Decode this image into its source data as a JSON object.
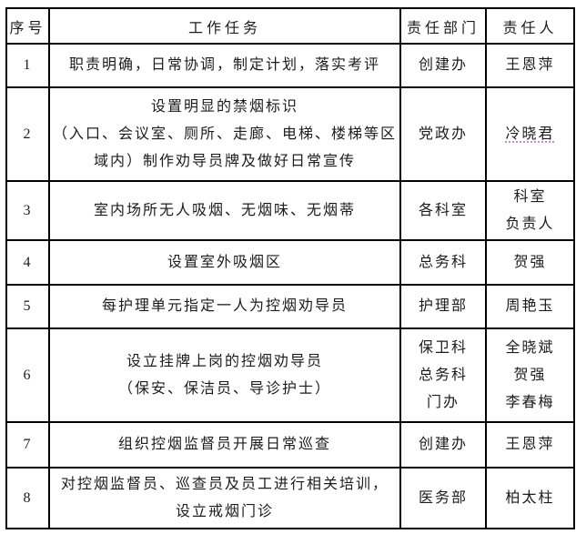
{
  "colors": {
    "border": "#000000",
    "text": "#1c1c1c",
    "spellcheck_underline": "#cc66cc"
  },
  "table": {
    "headers": [
      "序号",
      "工作任务",
      "责任部门",
      "责任人"
    ],
    "rows": [
      {
        "no": "1",
        "task": [
          "职责明确，日常协调，制定计划，落实考评"
        ],
        "dept": [
          "创建办"
        ],
        "person": [
          "王恩萍"
        ]
      },
      {
        "no": "2",
        "task": [
          "设置明显的禁烟标识",
          "（入口、会议室、厕所、走廊、电梯、楼梯等区",
          "域内）制作劝导员牌及做好日常宣传"
        ],
        "dept": [
          "党政办"
        ],
        "person": [
          "冷晓君"
        ],
        "person_underlined": true
      },
      {
        "no": "3",
        "task": [
          "室内场所无人吸烟、无烟味、无烟蒂"
        ],
        "dept": [
          "各科室"
        ],
        "person": [
          "科室",
          "负责人"
        ]
      },
      {
        "no": "4",
        "task": [
          "设置室外吸烟区"
        ],
        "dept": [
          "总务科"
        ],
        "person": [
          "贺强"
        ]
      },
      {
        "no": "5",
        "task": [
          "每护理单元指定一人为控烟劝导员"
        ],
        "dept": [
          "护理部"
        ],
        "person": [
          "周艳玉"
        ]
      },
      {
        "no": "6",
        "task": [
          "设立挂牌上岗的控烟劝导员",
          "（保安、保洁员、导诊护士）"
        ],
        "dept": [
          "保卫科",
          "总务科",
          "门办"
        ],
        "person": [
          "全晓斌",
          "贺强",
          "李春梅"
        ]
      },
      {
        "no": "7",
        "task": [
          "组织控烟监督员开展日常巡查"
        ],
        "dept": [
          "创建办"
        ],
        "person": [
          "王恩萍"
        ]
      },
      {
        "no": "8",
        "task": [
          "对控烟监督员、巡查员及员工进行相关培训，",
          "设立戒烟门诊"
        ],
        "dept": [
          "医务部"
        ],
        "person": [
          "柏太柱"
        ]
      }
    ]
  }
}
